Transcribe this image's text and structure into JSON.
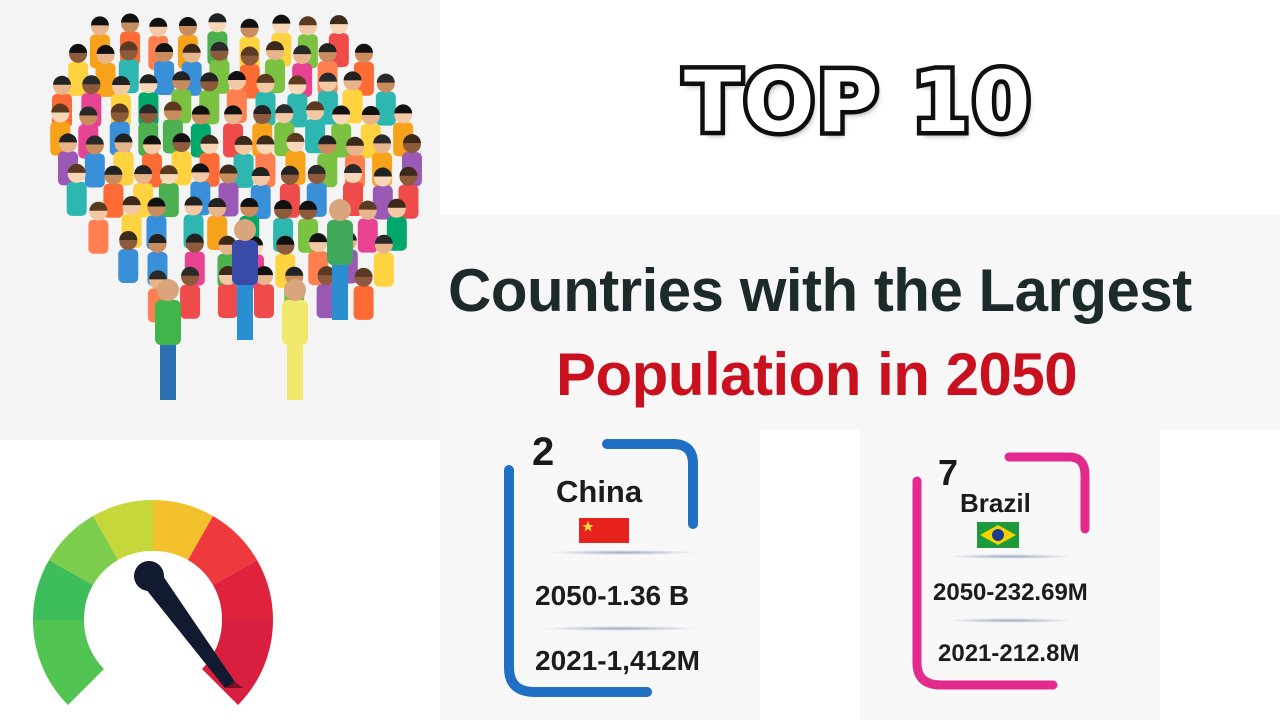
{
  "banner": {
    "top_label": "TOP 10"
  },
  "headline": {
    "line1": "Countries with the Largest",
    "line2": "Population in 2050"
  },
  "cards": [
    {
      "rank": "2",
      "country": "China",
      "stat_2050": "2050-1.36 B",
      "stat_2021": "2021-1,412M",
      "accent": "#1f6fc4"
    },
    {
      "rank": "7",
      "country": "Brazil",
      "stat_2050": "2050-232.69M",
      "stat_2021": "2021-212.8M",
      "accent": "#e22a8f"
    }
  ],
  "icons": {
    "crowd": "crowd-illustration",
    "gauge": "speedometer-gauge-icon",
    "china_flag": "china-flag-icon",
    "brazil_flag": "brazil-flag-icon"
  },
  "colors": {
    "headline_dark": "#1d2a2a",
    "headline_red": "#c8101e"
  }
}
